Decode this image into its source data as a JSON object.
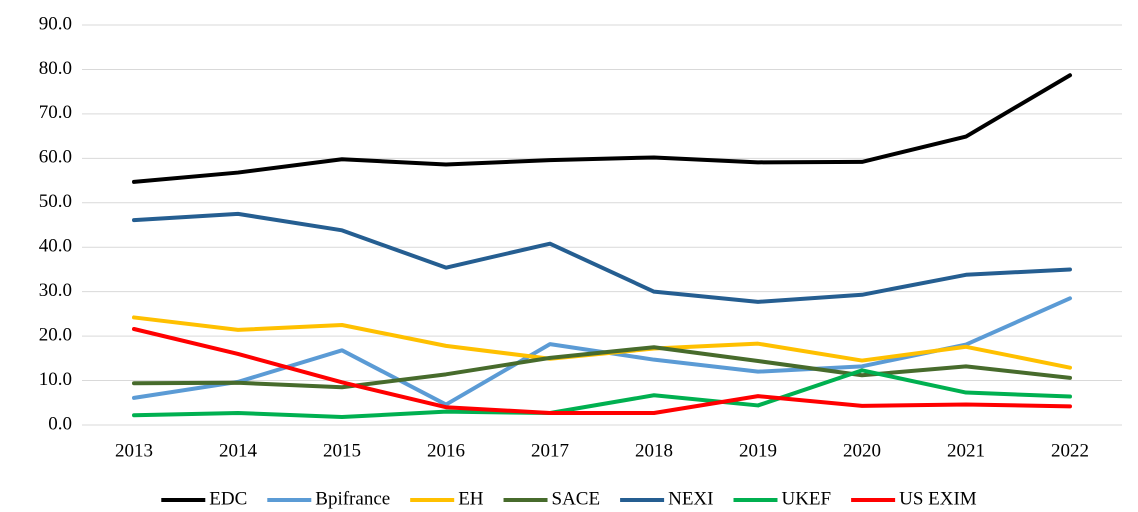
{
  "chart_data": {
    "type": "line",
    "categories": [
      "2013",
      "2014",
      "2015",
      "2016",
      "2017",
      "2018",
      "2019",
      "2020",
      "2021",
      "2022"
    ],
    "series": [
      {
        "name": "EDC",
        "color": "#000000",
        "values": [
          54.7,
          56.8,
          59.8,
          58.6,
          59.6,
          60.2,
          59.1,
          59.2,
          64.9,
          78.7
        ]
      },
      {
        "name": "Bpifrance",
        "color": "#5b9bd5",
        "values": [
          6.1,
          9.7,
          16.8,
          4.6,
          18.2,
          14.7,
          12.0,
          13.2,
          18.1,
          28.5
        ]
      },
      {
        "name": "EH",
        "color": "#ffc000",
        "values": [
          24.2,
          21.4,
          22.5,
          17.8,
          14.9,
          17.2,
          18.3,
          14.5,
          17.6,
          12.9
        ]
      },
      {
        "name": "SACE",
        "color": "#476b2c",
        "values": [
          9.4,
          9.5,
          8.5,
          11.4,
          15.1,
          17.5,
          14.4,
          11.2,
          13.2,
          10.6
        ]
      },
      {
        "name": "NEXI",
        "color": "#255e91",
        "values": [
          46.1,
          47.5,
          43.8,
          35.4,
          40.8,
          30.0,
          27.7,
          29.3,
          33.8,
          35.0
        ]
      },
      {
        "name": "UKEF",
        "color": "#00b050",
        "values": [
          2.2,
          2.7,
          1.8,
          3.0,
          2.7,
          6.7,
          4.4,
          12.3,
          7.3,
          6.4
        ]
      },
      {
        "name": "US EXIM",
        "color": "#ff0000",
        "values": [
          21.6,
          16.0,
          9.6,
          4.0,
          2.7,
          2.7,
          6.5,
          4.3,
          4.6,
          4.2
        ]
      }
    ],
    "ylim": [
      0,
      90
    ],
    "yticks": [
      {
        "value": 0,
        "label": "0.0"
      },
      {
        "value": 10,
        "label": "10.0"
      },
      {
        "value": 20,
        "label": "20.0"
      },
      {
        "value": 30,
        "label": "30.0"
      },
      {
        "value": 40,
        "label": "40.0"
      },
      {
        "value": 50,
        "label": "50.0"
      },
      {
        "value": 60,
        "label": "60.0"
      },
      {
        "value": 70,
        "label": "70.0"
      },
      {
        "value": 80,
        "label": "80.0"
      },
      {
        "value": 90,
        "label": "90.0"
      }
    ],
    "grid": true,
    "legend": "bottom"
  }
}
